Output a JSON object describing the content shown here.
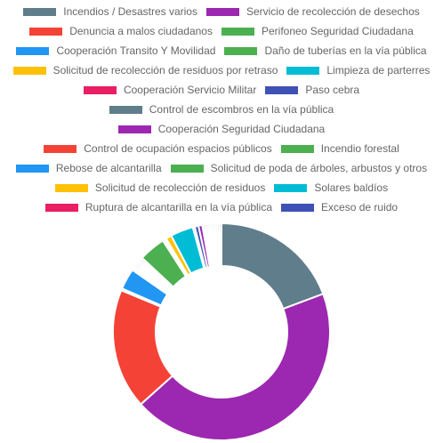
{
  "chart_data": {
    "type": "doughnut",
    "title": "",
    "legend_position": "top",
    "slices": [
      {
        "label": "Incendios / Desastres varios",
        "value": 68,
        "color": "#607d8b"
      },
      {
        "label": "Servicio de recolección de desechos",
        "value": 155,
        "color": "#9c27b0"
      },
      {
        "label": "Denuncia a malos ciudadanos",
        "value": 63,
        "color": "#f44336"
      },
      {
        "label": "Perifoneo Seguridad Ciudadana",
        "value": 1,
        "color": "#4caf50"
      },
      {
        "label": "Cooperación Transito Y Movilidad",
        "value": 11,
        "color": "#2196f3"
      },
      {
        "label": "Daño de tuberías en la vía pública",
        "value": 1,
        "color": "#4caf50"
      },
      {
        "label": "Solicitud de recolección de residuos por retraso",
        "value": 1,
        "color": "#ffc107"
      },
      {
        "label": "Limpieza de parterres",
        "value": 1,
        "color": "#00bcd4"
      },
      {
        "label": "Cooperación Servicio Militar",
        "value": 1,
        "color": "#e91e63"
      },
      {
        "label": "Paso cebra",
        "value": 1,
        "color": "#3f51b5"
      },
      {
        "label": "Control de escombros en la vía pública",
        "value": 1,
        "color": "#607d8b"
      },
      {
        "label": "Cooperación Seguridad Ciudadana",
        "value": 1,
        "color": "#9c27b0"
      },
      {
        "label": "Control de ocupación espacios públicos",
        "value": 1,
        "color": "#f44336"
      },
      {
        "label": "Incendio forestal",
        "value": 14,
        "color": "#4caf50"
      },
      {
        "label": "Rebose de alcantarilla",
        "value": 1,
        "color": "#2196f3"
      },
      {
        "label": "Solicitud de poda de árboles, arbustos y otros",
        "value": 1,
        "color": "#4caf50"
      },
      {
        "label": "Solicitud de recolección de residuos",
        "value": 3,
        "color": "#ffc107"
      },
      {
        "label": "Solares baldíos",
        "value": 12,
        "color": "#00bcd4"
      },
      {
        "label": "Ruptura de alcantarilla en la vía pública",
        "value": 1,
        "color": "#e91e63"
      },
      {
        "label": "Exceso de ruido",
        "value": 2,
        "color": "#3f51b5"
      },
      {
        "label": "",
        "value": 2,
        "color": "#9c27b0"
      },
      {
        "label": "",
        "value": 1,
        "color": "#607d8b"
      },
      {
        "label": "",
        "value": 1,
        "color": "#3f51b5"
      },
      {
        "label": "",
        "value": 1,
        "color": "#e91e63"
      },
      {
        "label": "",
        "value": 1,
        "color": "#00bcd4"
      },
      {
        "label": "",
        "value": 1,
        "color": "#ffc107"
      },
      {
        "label": "",
        "value": 1,
        "color": "#4caf50"
      },
      {
        "label": "",
        "value": 1,
        "color": "#2196f3"
      },
      {
        "label": "",
        "value": 1,
        "color": "#4caf50"
      },
      {
        "label": "",
        "value": 1,
        "color": "#f44336"
      },
      {
        "label": "",
        "value": 1,
        "color": "#9c27b0"
      }
    ]
  }
}
